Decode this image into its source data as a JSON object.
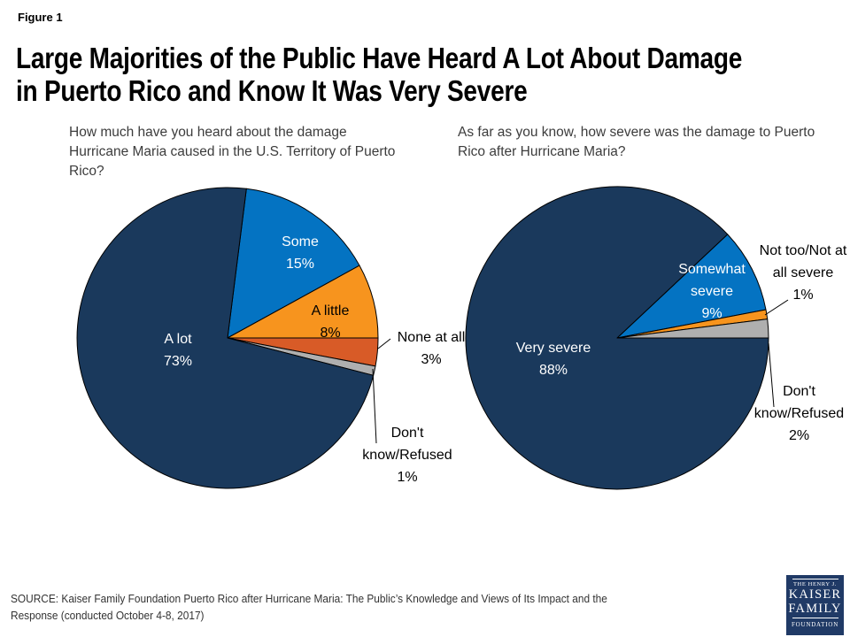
{
  "figure_label": "Figure 1",
  "title_line1": "Large Majorities of the Public Have Heard A Lot About Damage",
  "title_line2": "in Puerto Rico and Know It Was Very Severe",
  "source_note": "SOURCE: Kaiser Family Foundation Puerto Rico after Hurricane Maria: The Public’s Knowledge and Views of Its Impact and the Response (conducted October 4-8, 2017)",
  "logo": {
    "tagline": "THE HENRY J.",
    "word1": "KAISER",
    "word2": "FAMILY",
    "word3": "FOUNDATION",
    "bg_color": "#203a66"
  },
  "colors": {
    "navy": "#1a395c",
    "blue": "#0473c2",
    "orange": "#f7941e",
    "dark_orange": "#d85b27",
    "gray": "#afafaf",
    "leader_line": "#000000"
  },
  "chart_data": [
    {
      "type": "pie",
      "question": "How much have you heard about the damage Hurricane Maria caused in the U.S. Territory of Puerto Rico?",
      "start_angle_deg": 7.2,
      "slices": [
        {
          "label": "Some",
          "value": 15,
          "pct_label": "15%",
          "color": "#0473c2",
          "label_color": "#ffffff"
        },
        {
          "label": "A little",
          "value": 8,
          "pct_label": "8%",
          "color": "#f7941e",
          "label_color": "#000000"
        },
        {
          "label": "None at all",
          "value": 3,
          "pct_label": "3%",
          "color": "#d85b27",
          "label_color": "#000000"
        },
        {
          "label": "Don't know/Refused",
          "value": 1,
          "pct_label": "1%",
          "color": "#afafaf",
          "label_color": "#000000"
        },
        {
          "label": "A lot",
          "value": 73,
          "pct_label": "73%",
          "color": "#1a395c",
          "label_color": "#ffffff"
        }
      ]
    },
    {
      "type": "pie",
      "question": "As far as you know, how severe was the damage to Puerto Rico after Hurricane Maria?",
      "start_angle_deg": 46.8,
      "slices": [
        {
          "label": "Somewhat severe",
          "value": 9,
          "pct_label": "9%",
          "color": "#0473c2",
          "label_color": "#ffffff"
        },
        {
          "label": "Not too/Not at all severe",
          "value": 1,
          "pct_label": "1%",
          "color": "#f7941e",
          "label_color": "#000000"
        },
        {
          "label": "Don't know/Refused",
          "value": 2,
          "pct_label": "2%",
          "color": "#afafaf",
          "label_color": "#000000"
        },
        {
          "label": "Very severe",
          "value": 88,
          "pct_label": "88%",
          "color": "#1a395c",
          "label_color": "#ffffff"
        }
      ]
    }
  ]
}
